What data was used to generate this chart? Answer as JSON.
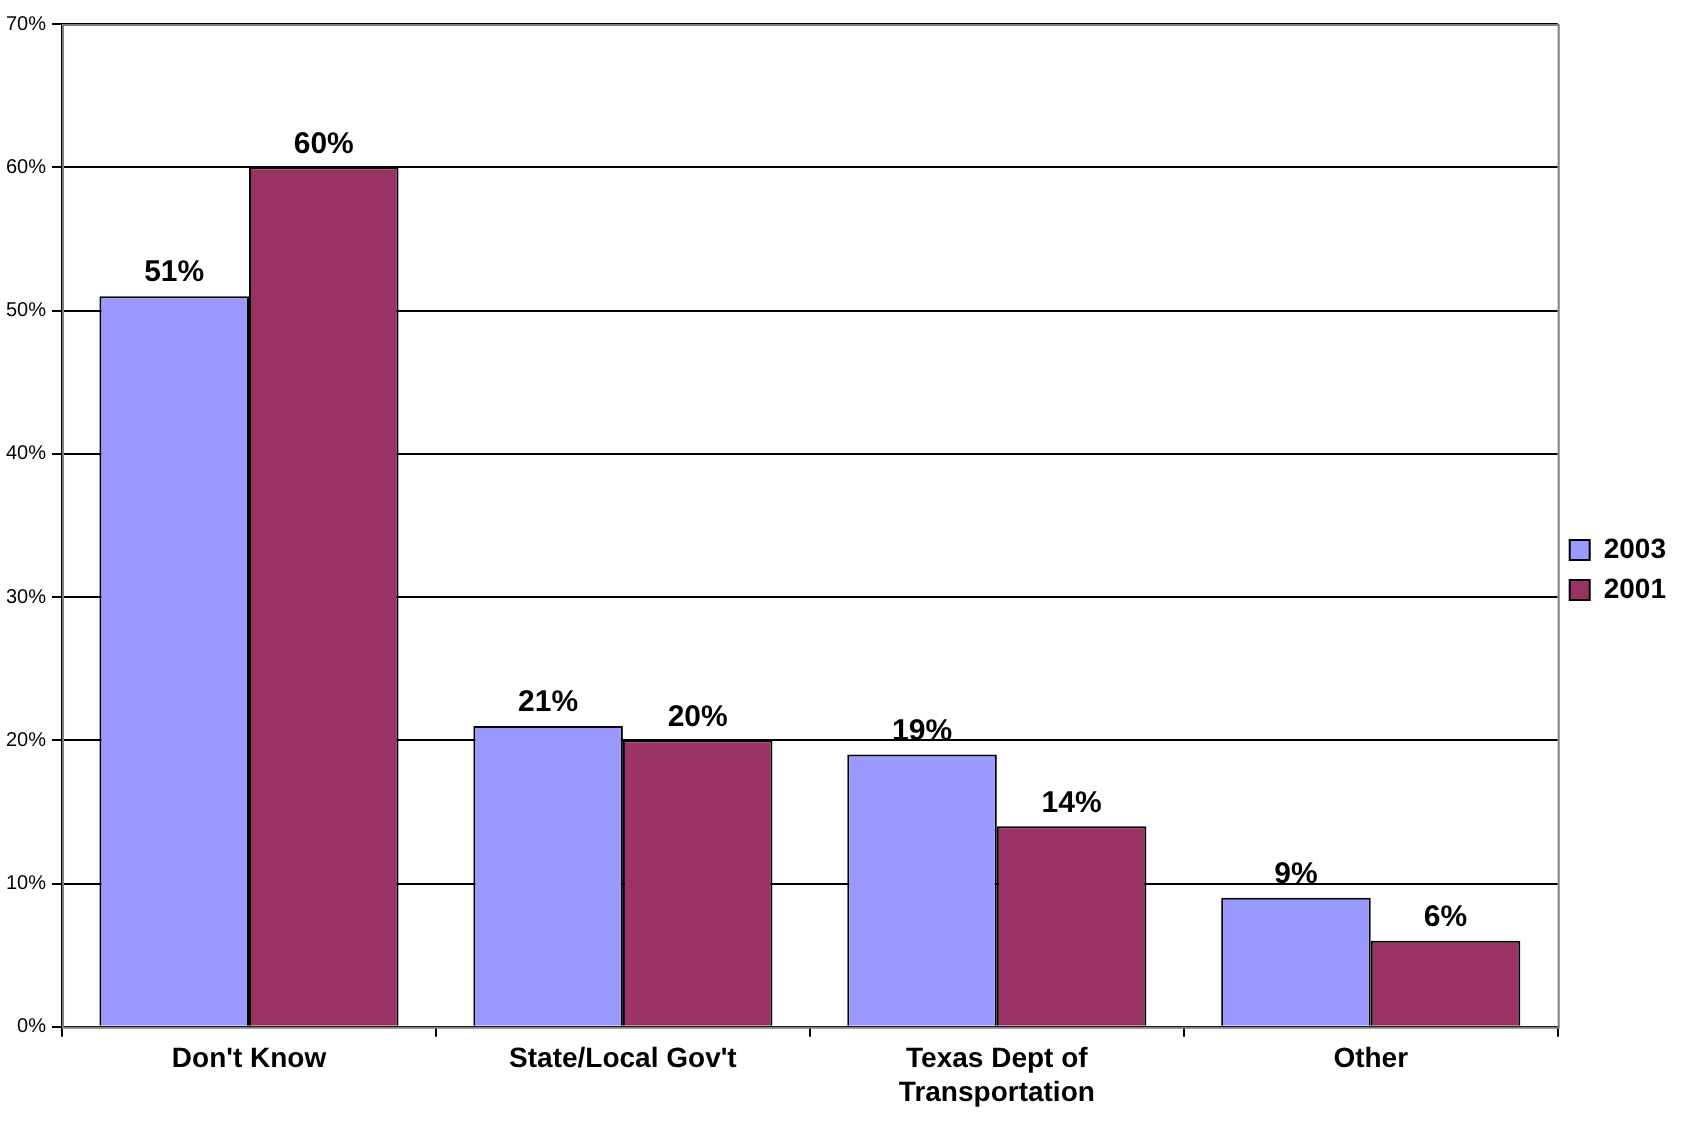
{
  "chart_data": {
    "type": "bar",
    "categories": [
      "Don't Know",
      "State/Local Gov't",
      "Texas Dept of Transportation",
      "Other"
    ],
    "series": [
      {
        "name": "2003",
        "color": "#9999ff",
        "values": [
          51,
          21,
          19,
          9
        ],
        "value_labels": [
          "51%",
          "21%",
          "19%",
          "9%"
        ]
      },
      {
        "name": "2001",
        "color": "#993366",
        "values": [
          60,
          20,
          14,
          6
        ],
        "value_labels": [
          "60%",
          "20%",
          "14%",
          "6%"
        ]
      }
    ],
    "ylim": [
      0,
      70
    ],
    "yticks": [
      {
        "value": 0,
        "label": "0%"
      },
      {
        "value": 10,
        "label": "10%"
      },
      {
        "value": 20,
        "label": "20%"
      },
      {
        "value": 30,
        "label": "30%"
      },
      {
        "value": 40,
        "label": "40%"
      },
      {
        "value": 50,
        "label": "50%"
      },
      {
        "value": 60,
        "label": "60%"
      },
      {
        "value": 70,
        "label": "70%"
      }
    ],
    "grid": "y",
    "legend": "right"
  }
}
